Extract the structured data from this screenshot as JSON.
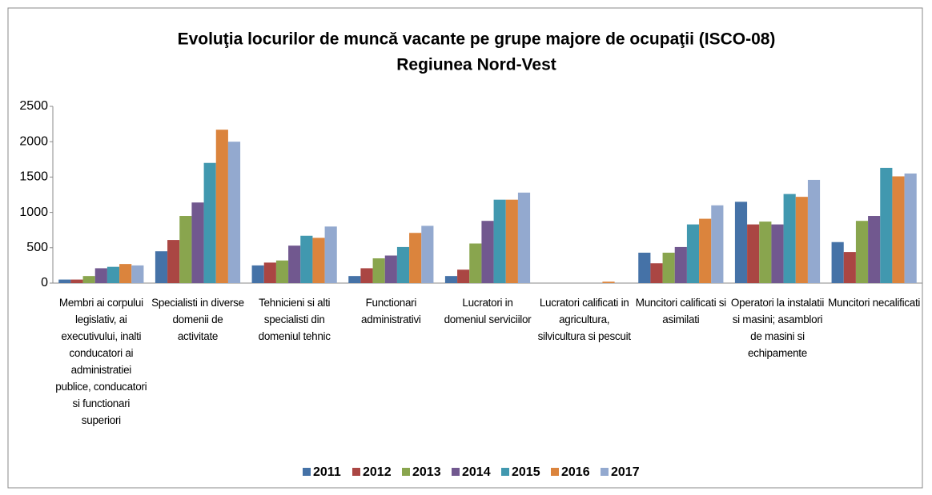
{
  "chart_data": {
    "type": "bar",
    "title": "Evoluţia locurilor de muncă vacante pe grupe majore de ocupaţii (ISCO-08)",
    "subtitle": "Regiunea Nord-Vest",
    "categories": [
      "Membri ai corpului legislativ, ai executivului, inalti conducatori ai administratiei publice, conducatori si functionari superiori",
      "Specialisti in diverse domenii de activitate",
      "Tehnicieni si alti specialisti din domeniul tehnic",
      "Functionari administrativi",
      "Lucratori in domeniul serviciilor",
      "Lucratori calificati in agricultura, silvicultura si pescuit",
      "Muncitori calificati si asimilati",
      "Operatori la instalatii si masini; asamblori de masini si echipamente",
      "Muncitori necalificati"
    ],
    "series": [
      {
        "name": "2011",
        "color": "#4572a7",
        "values": [
          50,
          450,
          250,
          100,
          100,
          0,
          430,
          1150,
          580
        ]
      },
      {
        "name": "2012",
        "color": "#aa4643",
        "values": [
          50,
          610,
          290,
          210,
          190,
          0,
          280,
          830,
          440
        ]
      },
      {
        "name": "2013",
        "color": "#89a54e",
        "values": [
          100,
          950,
          320,
          350,
          560,
          0,
          430,
          870,
          880
        ]
      },
      {
        "name": "2014",
        "color": "#71588f",
        "values": [
          210,
          1140,
          530,
          390,
          880,
          0,
          510,
          830,
          950
        ]
      },
      {
        "name": "2015",
        "color": "#4198af",
        "values": [
          230,
          1700,
          670,
          510,
          1180,
          0,
          830,
          1260,
          1630
        ]
      },
      {
        "name": "2016",
        "color": "#db843d",
        "values": [
          270,
          2170,
          640,
          710,
          1180,
          20,
          910,
          1220,
          1510
        ]
      },
      {
        "name": "2017",
        "color": "#93a9cf",
        "values": [
          250,
          2000,
          800,
          810,
          1280,
          0,
          1100,
          1460,
          1550
        ]
      }
    ],
    "ylim": [
      0,
      2500
    ],
    "yticks": [
      0,
      500,
      1000,
      1500,
      2000,
      2500
    ],
    "grid": false,
    "legend": "bottom"
  }
}
